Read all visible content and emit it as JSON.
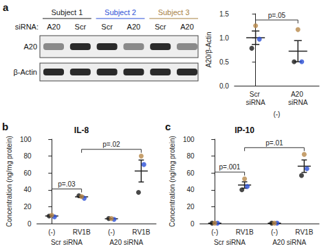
{
  "panel_labels": [
    "a",
    "b",
    "c"
  ],
  "blot": {
    "lane_header": "siRNA:",
    "rows": [
      "A20",
      "β-Actin"
    ],
    "subjects": [
      {
        "label": "Subject 1",
        "color": "#1a1a1a",
        "lanes": [
          "A20",
          "Scr"
        ]
      },
      {
        "label": "Subject 2",
        "color": "#2b4fd6",
        "lanes": [
          "Scr",
          "A20"
        ]
      },
      {
        "label": "Subject 3",
        "color": "#a7803f",
        "lanes": [
          "Scr",
          "A20"
        ]
      }
    ]
  },
  "chart_data": [
    {
      "type": "scatter",
      "y_label": "A20/β-Actin",
      "categories": [
        "Scr siRNA",
        "A20 siRNA"
      ],
      "groups": [
        "(-)"
      ],
      "series": [
        {
          "name": "Subject 1",
          "color": "#1a1a1a",
          "values": [
            0.78,
            0.5
          ]
        },
        {
          "name": "Subject 2",
          "color": "#2b4fd6",
          "values": [
            0.97,
            0.5
          ]
        },
        {
          "name": "Subject 3",
          "color": "#b8884a",
          "values": [
            1.25,
            1.17
          ]
        }
      ],
      "means": [
        1.0,
        0.72
      ],
      "errors": [
        0.14,
        0.22
      ],
      "annotations": [
        {
          "text": "p=.05",
          "from": 0,
          "to": 1
        }
      ],
      "ylim": [
        0,
        1.5
      ],
      "yticks": [
        {
          "value": 0,
          "label": "0.0"
        },
        0.5,
        {
          "value": 1,
          "label": "1.0"
        },
        1.5
      ]
    },
    {
      "type": "scatter",
      "title": "IL-8",
      "y_label": "Concentration (ng/mg protein)",
      "categories": [
        "(-)",
        "RV1B",
        "(-)",
        "RV1B"
      ],
      "groups": [
        "Scr siRNA",
        "A20 siRNA"
      ],
      "series": [
        {
          "name": "Subject 1",
          "color": "#1a1a1a",
          "values": [
            9,
            33,
            6,
            37
          ]
        },
        {
          "name": "Subject 2",
          "color": "#2b4fd6",
          "values": [
            8,
            30,
            5,
            70
          ]
        },
        {
          "name": "Subject 3",
          "color": "#b8884a",
          "values": [
            10,
            32,
            6,
            80
          ]
        }
      ],
      "means": [
        9,
        31.7,
        5.7,
        62.3
      ],
      "errors": [
        0.6,
        0.9,
        0.3,
        13
      ],
      "annotations": [
        {
          "text": "p=.03",
          "from": 0,
          "to": 1
        },
        {
          "text": "p=.02",
          "from": 1,
          "to": 3
        }
      ],
      "ylim": [
        0,
        100
      ],
      "yticks": [
        0,
        20,
        40,
        60,
        80,
        100
      ]
    },
    {
      "type": "scatter",
      "title": "IP-10",
      "y_label": "Concentration (ng/mg protein)",
      "categories": [
        "(-)",
        "RV1B",
        "(-)",
        "RV1B"
      ],
      "groups": [
        "Scr siRNA",
        "A20 siRNA"
      ],
      "series": [
        {
          "name": "Subject 1",
          "color": "#1a1a1a",
          "values": [
            0.5,
            40,
            0.5,
            57
          ]
        },
        {
          "name": "Subject 2",
          "color": "#2b4fd6",
          "values": [
            0.5,
            44,
            0.5,
            65
          ]
        },
        {
          "name": "Subject 3",
          "color": "#b8884a",
          "values": [
            0.5,
            53,
            0.5,
            82
          ]
        }
      ],
      "means": [
        0.5,
        45.7,
        0.5,
        68
      ],
      "errors": [
        0,
        3.8,
        0,
        7.4
      ],
      "annotations": [
        {
          "text": "p=.001",
          "from": 0,
          "to": 1
        },
        {
          "text": "p=.01",
          "from": 1,
          "to": 3
        }
      ],
      "ylim": [
        0,
        100
      ],
      "yticks": [
        0,
        20,
        40,
        60,
        80,
        100
      ]
    }
  ]
}
